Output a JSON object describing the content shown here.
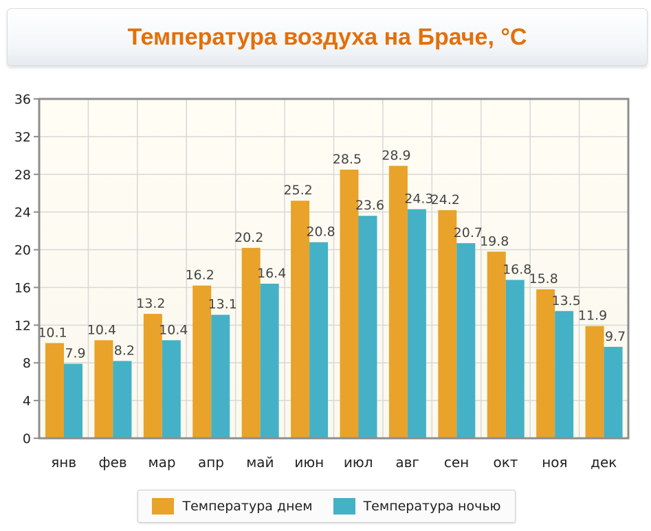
{
  "chart_data": {
    "type": "bar",
    "title": "Температура воздуха на Браче, °C",
    "categories": [
      "янв",
      "фев",
      "мар",
      "апр",
      "май",
      "июн",
      "июл",
      "авг",
      "сен",
      "окт",
      "ноя",
      "дек"
    ],
    "series": [
      {
        "name": "Температура днем",
        "color": "#e9a22a",
        "values": [
          10.1,
          10.4,
          13.2,
          16.2,
          20.2,
          25.2,
          28.5,
          28.9,
          24.2,
          19.8,
          15.8,
          11.9
        ],
        "labels": [
          "10.1",
          "10.4",
          "13.2",
          "16.2",
          "20.2",
          "25.2",
          "28.5",
          "28.9",
          "24.2",
          "19.8",
          "15.8",
          "11.9"
        ]
      },
      {
        "name": "Температура ночью",
        "color": "#45b1c7",
        "values": [
          7.9,
          8.2,
          10.4,
          13.1,
          16.4,
          20.8,
          23.6,
          24.3,
          20.7,
          16.8,
          13.5,
          9.7
        ],
        "labels": [
          "7.9",
          "8.2",
          "10.4",
          "13.1",
          "16.4",
          "20.8",
          "23.6",
          "24.3",
          "20.7",
          "16.8",
          "13.5",
          "9.7"
        ]
      }
    ],
    "ylim": [
      0,
      36
    ],
    "yticks": [
      "0",
      "4",
      "8",
      "12",
      "16",
      "20",
      "24",
      "28",
      "32",
      "36"
    ],
    "xlabel": "",
    "ylabel": "",
    "grid": true,
    "legend_position": "bottom-center"
  }
}
